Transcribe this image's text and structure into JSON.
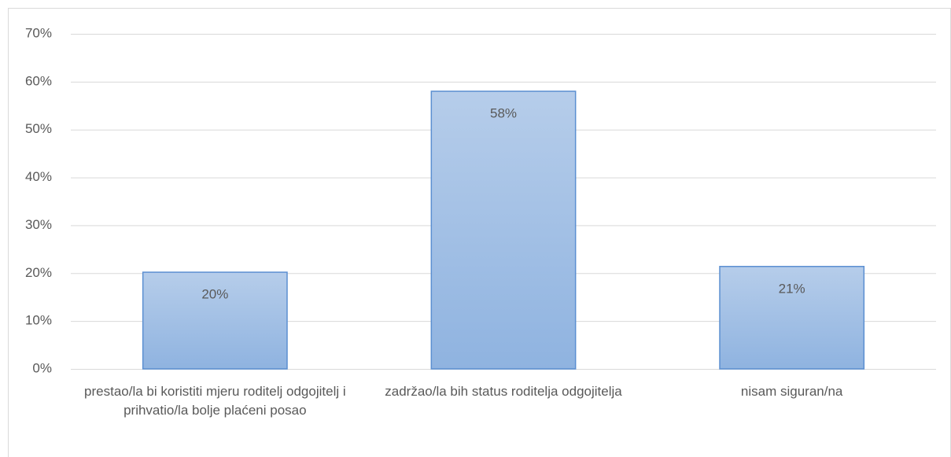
{
  "chart_data": {
    "type": "bar",
    "categories": [
      "prestao/la bi koristiti mjeru roditelj odgojitelj i prihvatio/la bolje plaćeni posao",
      "zadržao/la bih status roditelja odgojitelja",
      "nisam siguran/na"
    ],
    "values": [
      20.2,
      58.0,
      21.4
    ],
    "value_labels": [
      "20%",
      "58%",
      "21%"
    ],
    "color": "#9dbde6",
    "ylim": [
      0,
      70
    ],
    "yticks": [
      {
        "value": 0,
        "label": "0%"
      },
      {
        "value": 10,
        "label": "10%"
      },
      {
        "value": 20,
        "label": "20%"
      },
      {
        "value": 30,
        "label": "30%"
      },
      {
        "value": 40,
        "label": "40%"
      },
      {
        "value": 50,
        "label": "50%"
      },
      {
        "value": 60,
        "label": "60%"
      },
      {
        "value": 70,
        "label": "70%"
      }
    ],
    "grid": true
  }
}
